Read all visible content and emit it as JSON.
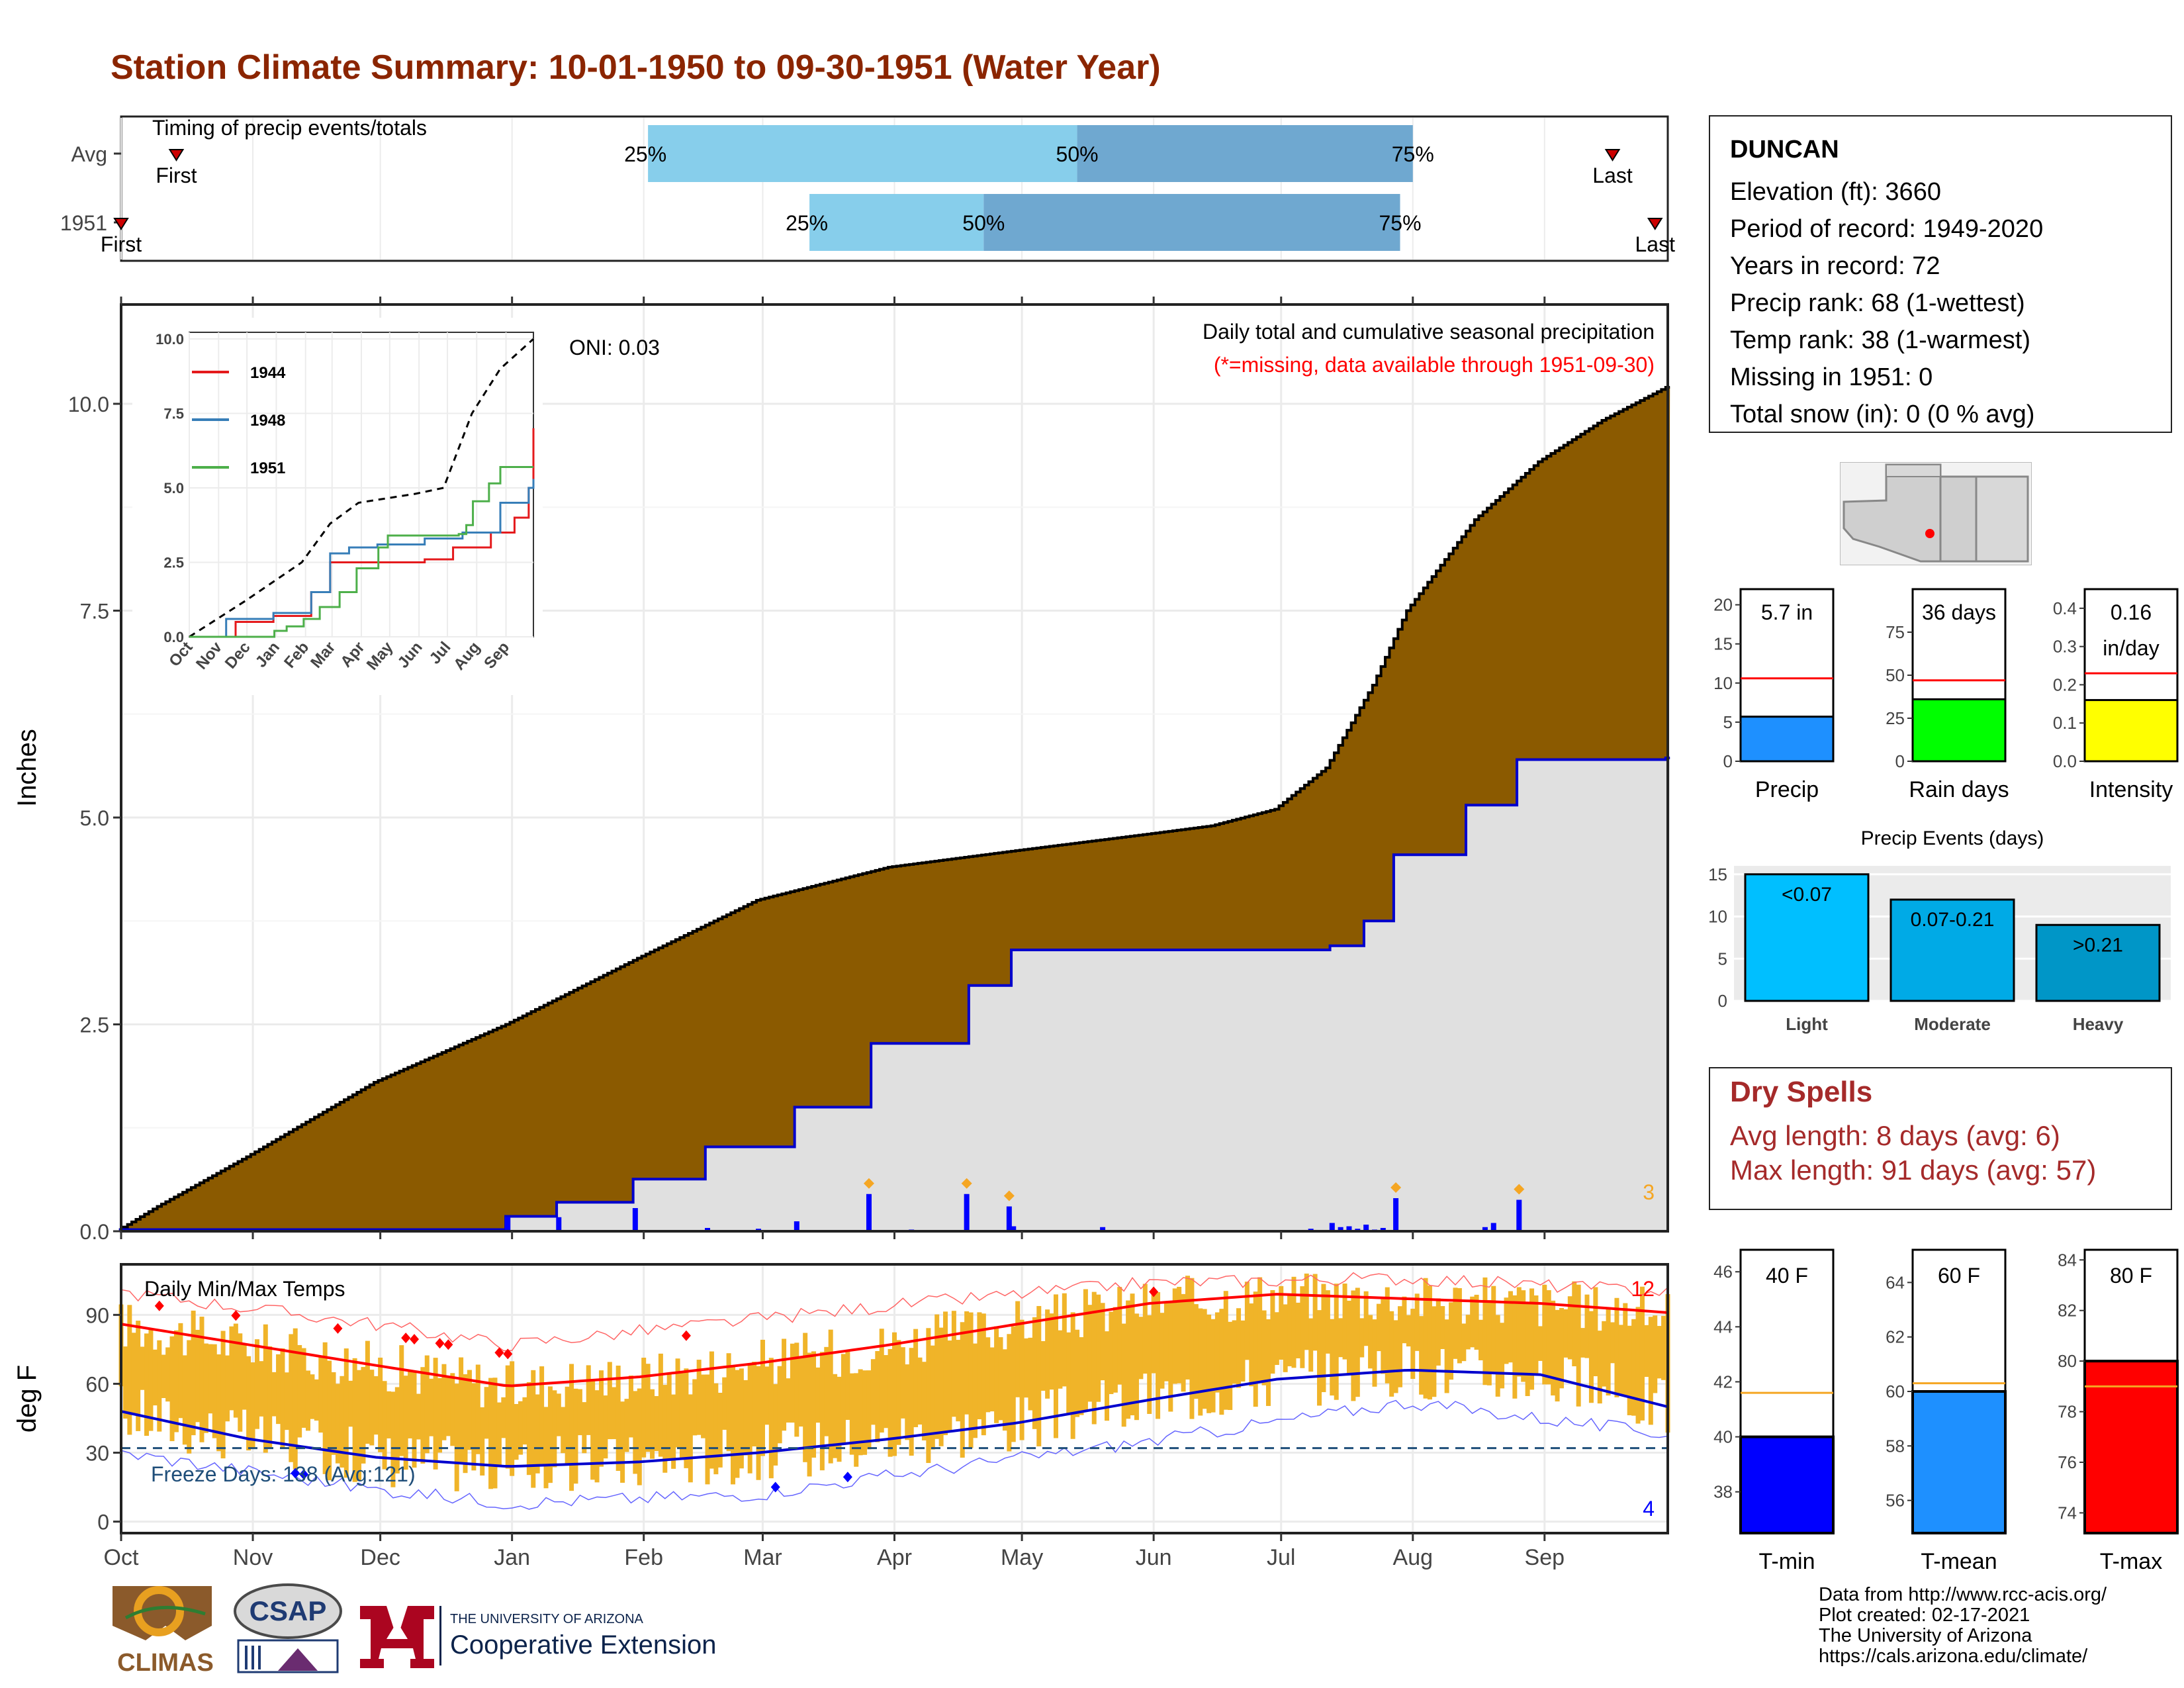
{
  "page": {
    "title": "Station Climate Summary: 10-01-1950 to 09-30-1951 (Water Year)"
  },
  "colors": {
    "title": "#8b2500",
    "cumulative_avg": "#8b5a00",
    "cumulative_obs_fill": "#e0e0e0",
    "cumulative_obs_line": "#0000cd",
    "daily_precip": "#0000ff",
    "temp_bars": "#f0b429",
    "temp_max_line": "#ff0000",
    "temp_min_line": "#0000cd",
    "dry_spells": "#a52a2a",
    "timing_light": "#87ceeb",
    "timing_dark": "#6fa8d0"
  },
  "timing": {
    "label": "Timing of precip events/totals",
    "rows": [
      "Avg",
      "1951"
    ],
    "avg": {
      "first_label": "First",
      "last_label": "Last",
      "p25": "25%",
      "p50": "50%",
      "p75": "75%"
    },
    "obs": {
      "first_label": "First",
      "last_label": "Last",
      "p25": "25%",
      "p50": "50%",
      "p75": "75%"
    }
  },
  "precip_panel": {
    "header": "Daily total and cumulative seasonal precipitation",
    "missing_note": "(*=missing, data available through 1951-09-30)",
    "oni": "ONI: 0.03",
    "ylabel": "Inches",
    "yticks": [
      "0.0",
      "2.5",
      "5.0",
      "7.5",
      "10.0"
    ],
    "count_label": "3"
  },
  "temp_panel": {
    "header": "Daily Min/Max Temps",
    "ylabel": "deg F",
    "yticks": [
      "0",
      "30",
      "60",
      "90"
    ],
    "freeze": "Freeze Days: 138 (Avg:121)",
    "high_count": "12",
    "low_count": "4",
    "months": [
      "Oct",
      "Nov",
      "Dec",
      "Jan",
      "Feb",
      "Mar",
      "Apr",
      "May",
      "Jun",
      "Jul",
      "Aug",
      "Sep"
    ]
  },
  "inset": {
    "yticks": [
      "0.0",
      "2.5",
      "5.0",
      "7.5",
      "10.0"
    ],
    "months": [
      "Oct",
      "Nov",
      "Dec",
      "Jan",
      "Feb",
      "Mar",
      "Apr",
      "May",
      "Jun",
      "Jul",
      "Aug",
      "Sep"
    ],
    "legend": [
      "1944",
      "1948",
      "1951"
    ]
  },
  "station": {
    "name": "DUNCAN",
    "lines": [
      "Elevation (ft): 3660",
      "Period of record: 1949-2020",
      "Years in record: 72",
      "Precip rank: 68 (1-wettest)",
      "Temp rank: 38 (1-warmest)",
      "Missing in 1951: 0",
      "Total snow (in): 0 (0 % avg)"
    ]
  },
  "mini_bars": {
    "precip": {
      "label": "Precip",
      "value_label": "5.7 in",
      "yticks": [
        "0",
        "5",
        "10",
        "15",
        "20"
      ]
    },
    "rain_days": {
      "label": "Rain days",
      "value_label": "36 days",
      "yticks": [
        "0",
        "25",
        "50",
        "75"
      ]
    },
    "intensity": {
      "label": "Intensity",
      "value_label": "0.16",
      "value_unit": "in/day",
      "yticks": [
        "0.0",
        "0.1",
        "0.2",
        "0.3",
        "0.4"
      ]
    }
  },
  "precip_events": {
    "title": "Precip Events (days)",
    "yticks": [
      "0",
      "5",
      "10",
      "15"
    ],
    "categories": [
      "Light",
      "Moderate",
      "Heavy"
    ],
    "bin_labels": [
      "<0.07",
      "0.07-0.21",
      ">0.21"
    ]
  },
  "dry_spells": {
    "title": "Dry Spells",
    "avg": "Avg length: 8 days (avg: 6)",
    "max": "Max length: 91 days (avg: 57)"
  },
  "temp_bars": {
    "tmin": {
      "label": "T-min",
      "value_label": "40 F",
      "yticks": [
        "38",
        "40",
        "42",
        "44",
        "46"
      ]
    },
    "tmean": {
      "label": "T-mean",
      "value_label": "60 F",
      "yticks": [
        "56",
        "58",
        "60",
        "62",
        "64"
      ]
    },
    "tmax": {
      "label": "T-max",
      "value_label": "80 F",
      "yticks": [
        "74",
        "76",
        "78",
        "80",
        "82",
        "84"
      ]
    }
  },
  "logos": {
    "climas": "CLIMAS",
    "csap": "CSAP",
    "ua_line1": "THE UNIVERSITY OF ARIZONA",
    "ua_line2": "Cooperative Extension"
  },
  "credits": [
    "Data from http://www.rcc-acis.org/",
    "Plot created: 02-17-2021",
    "The University of Arizona",
    "https://cals.arizona.edu/climate/"
  ],
  "chart_data": [
    {
      "type": "bar",
      "name": "timing",
      "title": "Timing of precip events/totals",
      "rows": [
        "Avg",
        "1951"
      ],
      "x_axis": "day of water year (1-365)",
      "xlim": [
        1,
        365
      ],
      "series": [
        {
          "name": "Avg",
          "first": 14,
          "p25": 125,
          "p50": 226,
          "p75": 305,
          "last": 352
        },
        {
          "name": "1951",
          "first": 1,
          "p25": 163,
          "p50": 204,
          "p75": 302,
          "last": 362
        }
      ]
    },
    {
      "type": "area",
      "name": "cumulative_precip",
      "title": "Daily total and cumulative seasonal precipitation",
      "ylabel": "Inches",
      "ylim": [
        0,
        11.2
      ],
      "x_axis": "day of water year",
      "series": [
        {
          "name": "Average cumulative",
          "x": [
            1,
            10,
            31,
            61,
            92,
            123,
            151,
            182,
            212,
            243,
            258,
            273,
            285,
            296,
            304,
            320,
            335,
            350,
            365
          ],
          "y": [
            0.02,
            0.3,
            0.9,
            1.8,
            2.5,
            3.3,
            4.0,
            4.4,
            4.6,
            4.8,
            4.9,
            5.1,
            5.6,
            6.6,
            7.5,
            8.6,
            9.3,
            9.8,
            10.2
          ]
        },
        {
          "name": "1951 cumulative",
          "x": [
            1,
            91,
            92,
            103,
            104,
            121,
            122,
            138,
            139,
            159,
            160,
            177,
            178,
            200,
            201,
            210,
            211,
            285,
            286,
            293,
            294,
            300,
            301,
            317,
            318,
            329,
            330,
            364,
            365
          ],
          "y": [
            0.02,
            0.02,
            0.18,
            0.18,
            0.35,
            0.35,
            0.63,
            0.63,
            1.02,
            1.02,
            1.5,
            1.5,
            2.27,
            2.27,
            2.97,
            2.97,
            3.4,
            3.4,
            3.45,
            3.45,
            3.75,
            3.75,
            4.55,
            4.55,
            5.15,
            5.15,
            5.7,
            5.7,
            5.72
          ]
        },
        {
          "name": "Daily precip",
          "x": [
            92,
            104,
            122,
            139,
            151,
            160,
            177,
            187,
            200,
            210,
            211,
            232,
            281,
            286,
            288,
            290,
            292,
            294,
            296,
            298,
            301,
            322,
            324,
            330
          ],
          "y": [
            0.17,
            0.17,
            0.28,
            0.04,
            0.03,
            0.12,
            0.45,
            0.02,
            0.45,
            0.3,
            0.06,
            0.05,
            0.03,
            0.1,
            0.05,
            0.06,
            0.03,
            0.08,
            0.02,
            0.04,
            0.4,
            0.05,
            0.1,
            0.38
          ]
        }
      ]
    },
    {
      "type": "line",
      "name": "inset_years",
      "ylim": [
        0,
        10
      ],
      "series": [
        {
          "name": "Average",
          "x": [
            1,
            60,
            120,
            150,
            180,
            240,
            270,
            300,
            330,
            365
          ],
          "y": [
            0.0,
            1.2,
            2.5,
            3.8,
            4.5,
            4.8,
            5.0,
            7.5,
            9.0,
            10.0
          ]
        },
        {
          "name": "1944",
          "x": [
            1,
            50,
            90,
            130,
            150,
            200,
            250,
            280,
            320,
            345,
            360,
            365
          ],
          "y": [
            0.0,
            0.5,
            0.7,
            1.5,
            2.5,
            2.5,
            2.6,
            3.0,
            3.5,
            4.0,
            5.0,
            7.0
          ]
        },
        {
          "name": "1948",
          "x": [
            1,
            40,
            90,
            130,
            150,
            170,
            200,
            250,
            290,
            330,
            360,
            365
          ],
          "y": [
            0.0,
            0.6,
            0.8,
            1.5,
            2.8,
            3.0,
            3.1,
            3.3,
            3.5,
            4.5,
            5.0,
            5.3
          ]
        },
        {
          "name": "1951",
          "x": [
            1,
            91,
            104,
            122,
            139,
            160,
            178,
            201,
            211,
            286,
            294,
            301,
            318,
            330,
            365
          ],
          "y": [
            0.0,
            0.2,
            0.35,
            0.6,
            1.0,
            1.5,
            2.3,
            3.0,
            3.4,
            3.45,
            3.75,
            4.55,
            5.15,
            5.7,
            5.7
          ]
        }
      ]
    },
    {
      "type": "line",
      "name": "daily_temps",
      "title": "Daily Min/Max Temps",
      "ylabel": "deg F",
      "ylim": [
        -5,
        115
      ],
      "series": [
        {
          "name": "Avg max",
          "x": [
            1,
            31,
            61,
            92,
            123,
            151,
            182,
            212,
            243,
            273,
            304,
            335,
            365
          ],
          "y": [
            86,
            77,
            68,
            59,
            63,
            69,
            77,
            86,
            95,
            99,
            97,
            95,
            91
          ]
        },
        {
          "name": "Avg min",
          "x": [
            1,
            31,
            61,
            92,
            123,
            151,
            182,
            212,
            243,
            273,
            304,
            335,
            365
          ],
          "y": [
            48,
            36,
            28,
            24,
            26,
            30,
            36,
            43,
            53,
            62,
            66,
            64,
            50
          ]
        },
        {
          "name": "Record max",
          "x": [
            1,
            61,
            92,
            182,
            243,
            304,
            365
          ],
          "y": [
            100,
            86,
            77,
            94,
            104,
            106,
            100
          ]
        },
        {
          "name": "Record min",
          "x": [
            1,
            61,
            92,
            151,
            182,
            243,
            304,
            365
          ],
          "y": [
            30,
            14,
            8,
            12,
            20,
            35,
            52,
            38
          ]
        }
      ]
    },
    {
      "type": "bar",
      "name": "summary_bars",
      "series": [
        {
          "name": "Precip",
          "value": 5.7,
          "avg": 10.6,
          "ylim": [
            0,
            22
          ]
        },
        {
          "name": "Rain days",
          "value": 36,
          "avg": 47,
          "ylim": [
            0,
            100
          ]
        },
        {
          "name": "Intensity",
          "value": 0.16,
          "avg": 0.23,
          "ylim": [
            0,
            0.45
          ]
        },
        {
          "name": "T-min",
          "value": 40,
          "avg": 41.6,
          "ylim": [
            36.5,
            46.8
          ]
        },
        {
          "name": "T-mean",
          "value": 60,
          "avg": 60.3,
          "ylim": [
            54.8,
            65.2
          ]
        },
        {
          "name": "T-max",
          "value": 80,
          "avg": 79,
          "ylim": [
            73.2,
            84.4
          ]
        }
      ]
    },
    {
      "type": "bar",
      "name": "precip_events",
      "title": "Precip Events (days)",
      "categories": [
        "Light",
        "Moderate",
        "Heavy"
      ],
      "values": [
        15,
        12,
        9
      ],
      "ylim": [
        0,
        16
      ]
    }
  ]
}
